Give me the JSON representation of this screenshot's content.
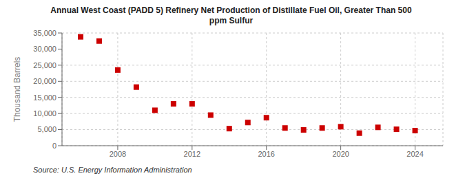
{
  "chart_data": {
    "type": "scatter",
    "title": "Annual West Coast (PADD 5) Refinery Net Production of Distillate Fuel Oil, Greater Than 500\nppm Sulfur",
    "ylabel": "Thousand Barrels",
    "annotations": [
      "Source: U.S. Energy Information Administration"
    ],
    "x": [
      2006,
      2007,
      2008,
      2009,
      2010,
      2011,
      2012,
      2013,
      2014,
      2015,
      2016,
      2017,
      2018,
      2019,
      2020,
      2021,
      2022,
      2023,
      2024
    ],
    "values": [
      33800,
      32500,
      23500,
      18200,
      11000,
      13000,
      13000,
      9500,
      5300,
      7200,
      8700,
      5500,
      4900,
      5500,
      5900,
      3900,
      5700,
      5100,
      4700
    ],
    "color": "#cc0000",
    "marker": "square",
    "grid": true,
    "xlim": [
      2005,
      2025.5
    ],
    "xticks": [
      2008,
      2012,
      2016,
      2020,
      2024
    ],
    "ylim": [
      0,
      35000
    ],
    "yticks": [
      0,
      {
        "value": 5000,
        "label": "5,000"
      },
      {
        "value": 10000,
        "label": "10,000"
      },
      {
        "value": 15000,
        "label": "15,000"
      },
      {
        "value": 20000,
        "label": "20,000"
      },
      {
        "value": 25000,
        "label": "25,000"
      },
      {
        "value": 30000,
        "label": "30,000"
      },
      {
        "value": 35000,
        "label": "35,000"
      }
    ]
  }
}
